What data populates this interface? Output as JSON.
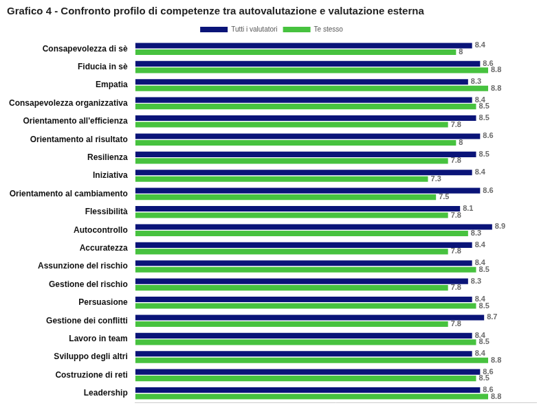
{
  "chart_data": {
    "type": "bar",
    "title": "Grafico 4 - Confronto profilo di competenze tra autovalutazione e valutazione esterna",
    "orientation": "horizontal",
    "categories": [
      "Consapevolezza di sè",
      "Fiducia in sè",
      "Empatia",
      "Consapevolezza organizzativa",
      "Orientamento all'efficienza",
      "Orientamento al risultato",
      "Resilienza",
      "Iniziativa",
      "Orientamento al cambiamento",
      "Flessibilità",
      "Autocontrollo",
      "Accuratezza",
      "Assunzione del rischio",
      "Gestione del rischio",
      "Persuasione",
      "Gestione dei conflitti",
      "Lavoro in team",
      "Sviluppo degli altri",
      "Costruzione di reti",
      "Leadership"
    ],
    "series": [
      {
        "name": "Tutti i valutatori",
        "color": "#0a1478",
        "values": [
          8.4,
          8.6,
          8.3,
          8.4,
          8.5,
          8.6,
          8.5,
          8.4,
          8.6,
          8.1,
          8.9,
          8.4,
          8.4,
          8.3,
          8.4,
          8.7,
          8.4,
          8.4,
          8.6,
          8.6
        ]
      },
      {
        "name": "Te stesso",
        "color": "#47c23f",
        "values": [
          8,
          8.8,
          8.8,
          8.5,
          7.8,
          8,
          7.8,
          7.3,
          7.5,
          7.8,
          8.3,
          7.8,
          8.5,
          7.8,
          8.5,
          7.8,
          8.5,
          8.8,
          8.5,
          8.8
        ]
      }
    ],
    "xlim": [
      0,
      10
    ],
    "grid": false,
    "legend": "top",
    "data_labels": true,
    "tick_labels": "y"
  }
}
